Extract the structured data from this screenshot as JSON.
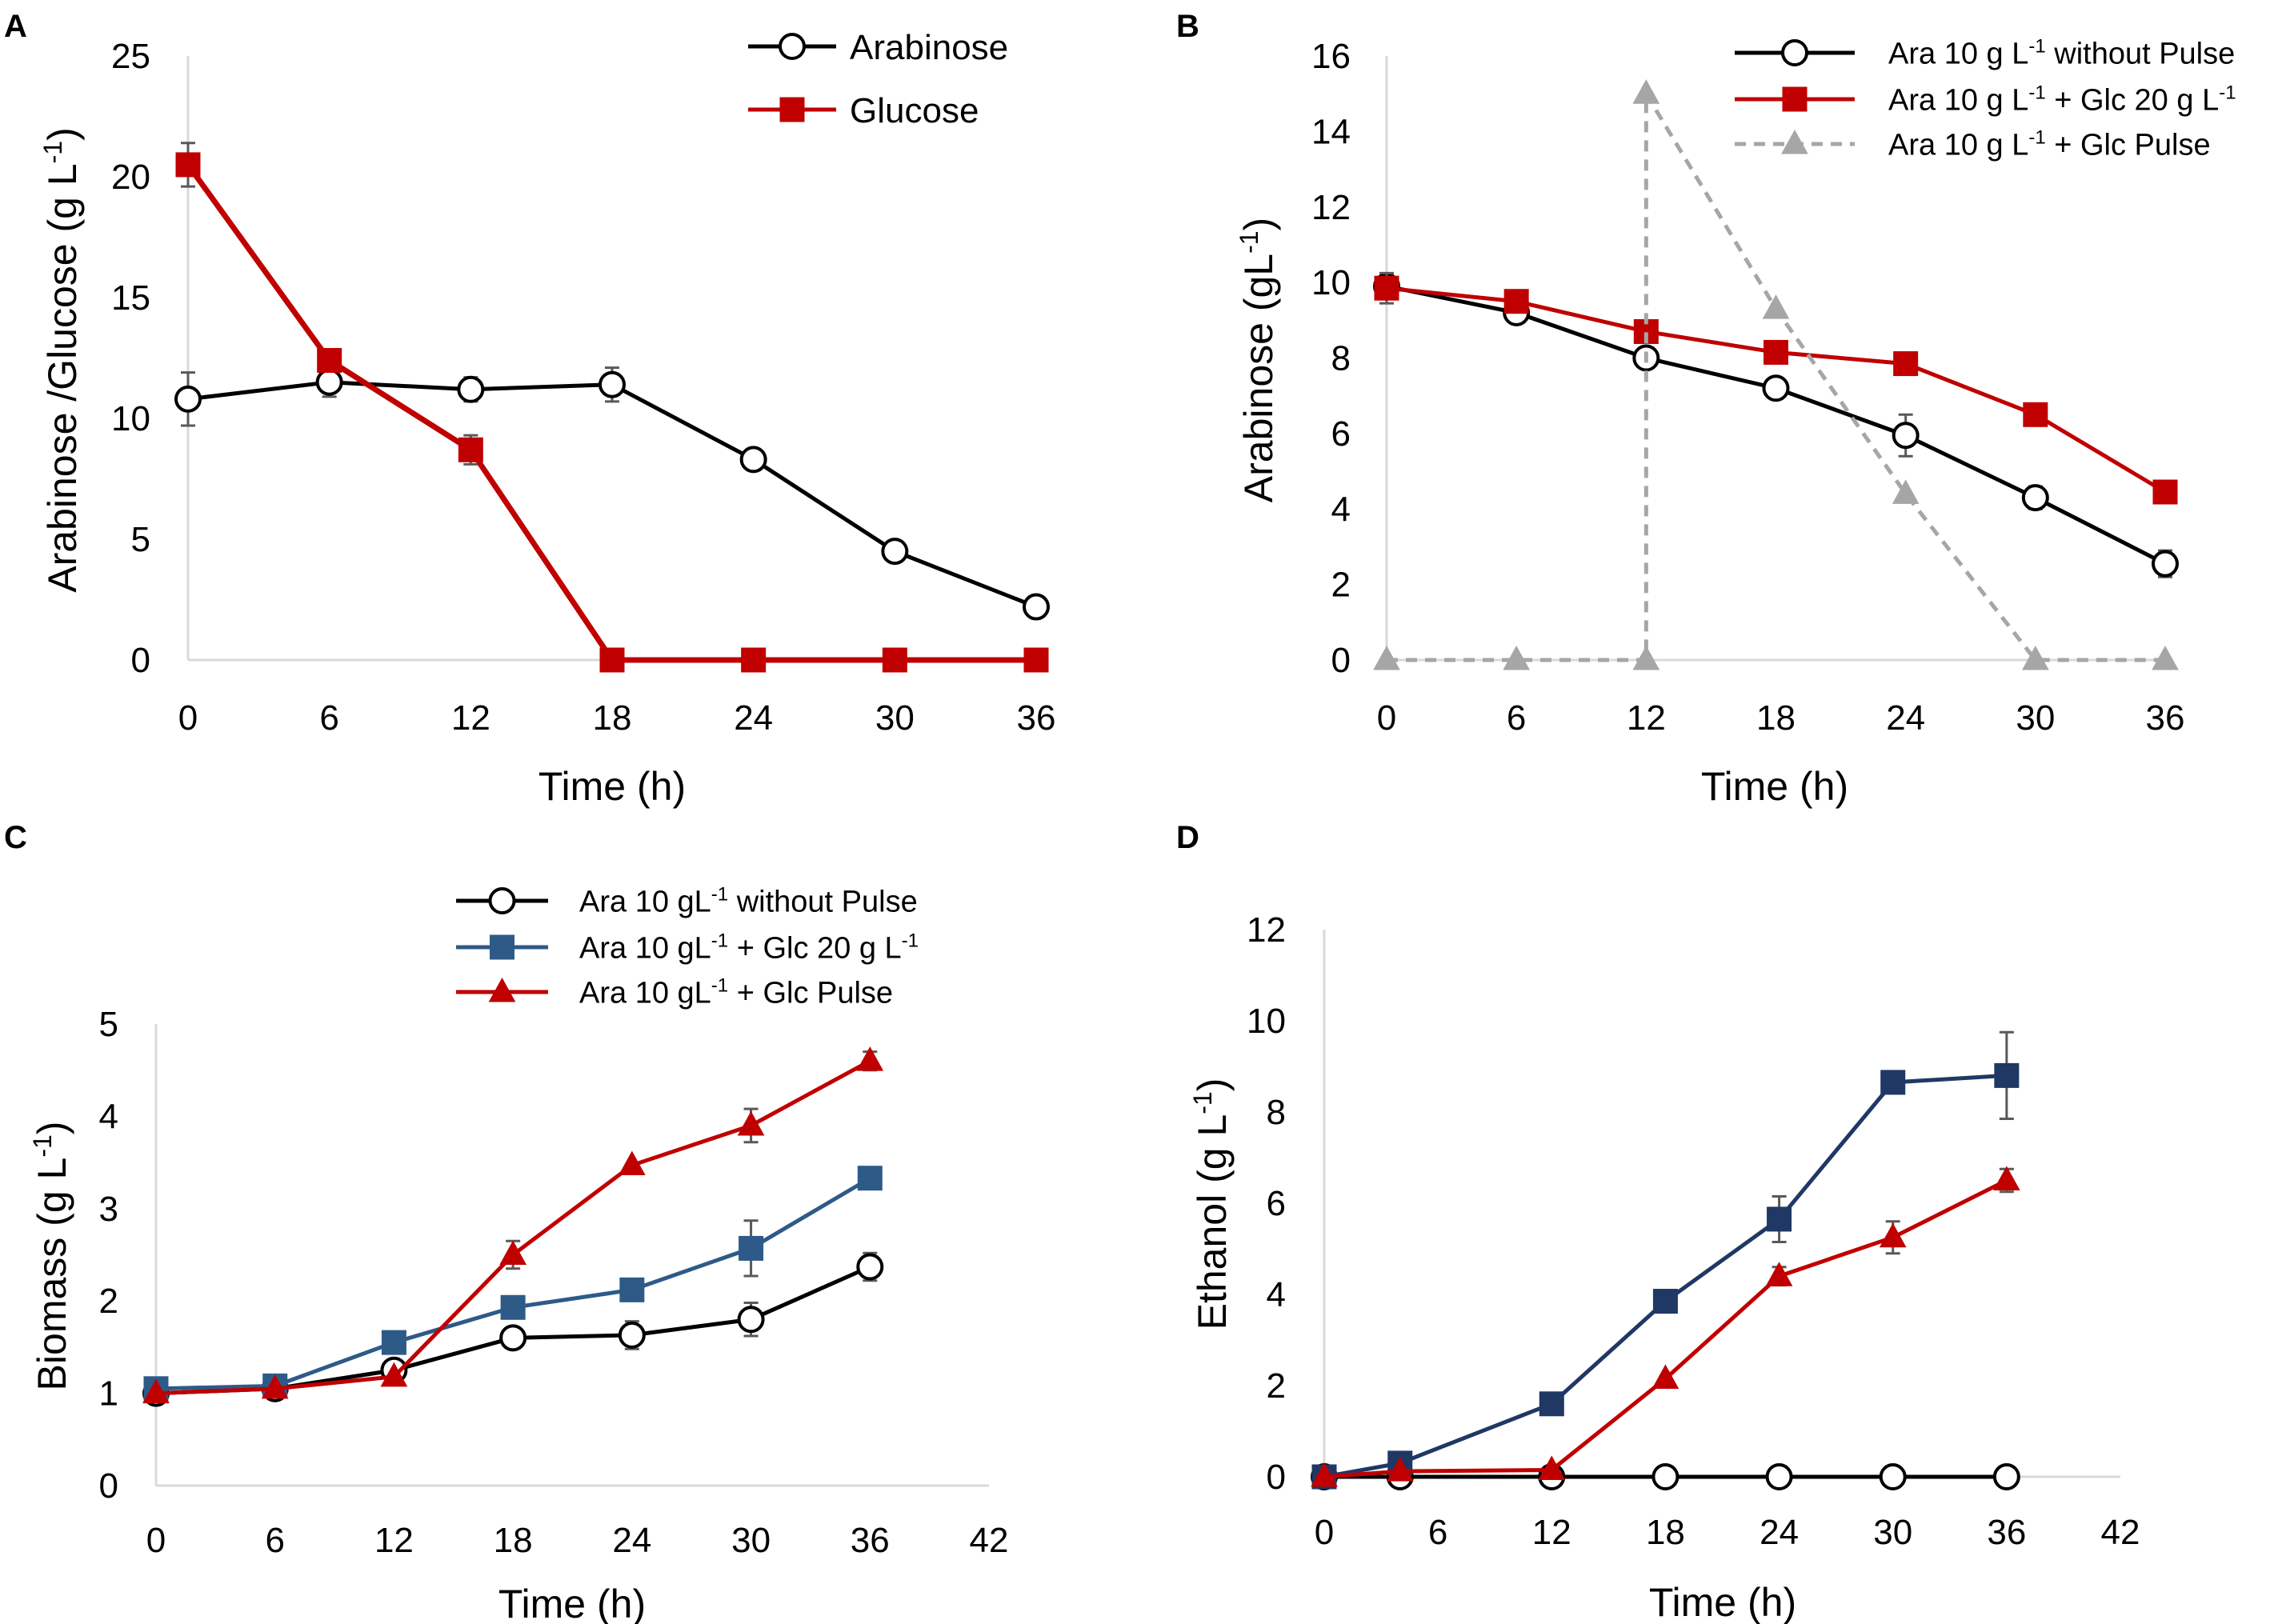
{
  "chart_data": [
    {
      "panel": "A",
      "type": "line",
      "title": "",
      "xlabel": "Time (h)",
      "ylabel": "Arabinose /Glucose  (g L",
      "ylabel_sup": "-1",
      "ylabel_end": ")",
      "xlim": [
        0,
        36
      ],
      "ylim": [
        0,
        25
      ],
      "xticks": [
        0,
        6,
        12,
        18,
        24,
        30,
        36
      ],
      "yticks": [
        0,
        5,
        10,
        15,
        20,
        25
      ],
      "grid": false,
      "legend_position": "top-right",
      "series": [
        {
          "name": "Arabinose",
          "legend_parts": [
            {
              "t": "Arabinose"
            }
          ],
          "color": "#000000",
          "marker": "circle",
          "dashed": false,
          "x": [
            0,
            6,
            12,
            18,
            24,
            30,
            36
          ],
          "y": [
            10.8,
            11.5,
            11.2,
            11.4,
            8.3,
            4.5,
            2.2
          ],
          "err": [
            1.1,
            0.6,
            0.5,
            0.7,
            0,
            0,
            0
          ]
        },
        {
          "name": "Glucose",
          "legend_parts": [
            {
              "t": "Glucose"
            }
          ],
          "color": "#C00000",
          "marker": "square",
          "dashed": false,
          "x": [
            0,
            6,
            12,
            18,
            24,
            30,
            36
          ],
          "y": [
            20.5,
            12.4,
            8.7,
            0,
            0,
            0,
            0
          ],
          "err": [
            0.9,
            0,
            0.6,
            0,
            0,
            0,
            0
          ]
        }
      ]
    },
    {
      "panel": "B",
      "type": "line",
      "title": "",
      "xlabel": "Time (h)",
      "ylabel": "Arabinose (gL",
      "ylabel_sup": "-1",
      "ylabel_end": ")",
      "xlim": [
        0,
        36
      ],
      "ylim": [
        0,
        16
      ],
      "xticks": [
        0,
        6,
        12,
        18,
        24,
        30,
        36
      ],
      "yticks": [
        0,
        2,
        4,
        6,
        8,
        10,
        12,
        14,
        16
      ],
      "grid": false,
      "legend_position": "top-right",
      "series": [
        {
          "name": "Ara 10 g L-1 without Pulse",
          "legend_parts": [
            {
              "t": "Ara 10 g L"
            },
            {
              "t": "-1",
              "sup": true
            },
            {
              "t": " without Pulse"
            }
          ],
          "color": "#000000",
          "marker": "circle",
          "dashed": false,
          "x": [
            0,
            6,
            12,
            18,
            24,
            30,
            36
          ],
          "y": [
            9.9,
            9.2,
            8.0,
            7.2,
            5.95,
            4.3,
            2.55
          ],
          "err": [
            0,
            0,
            0,
            0,
            0.55,
            0.3,
            0.35
          ]
        },
        {
          "name": "Ara 10 g L-1 + Glc 20 g L-1",
          "legend_parts": [
            {
              "t": "Ara 10 g L"
            },
            {
              "t": "-1",
              "sup": true
            },
            {
              "t": "  +  Glc 20 g L"
            },
            {
              "t": "-1",
              "sup": true
            }
          ],
          "color": "#C00000",
          "marker": "square",
          "dashed": false,
          "x": [
            0,
            6,
            12,
            18,
            24,
            30,
            36
          ],
          "y": [
            9.85,
            9.5,
            8.7,
            8.15,
            7.85,
            6.5,
            4.45
          ],
          "err": [
            0.4,
            0,
            0,
            0,
            0,
            0,
            0
          ]
        },
        {
          "name": "Ara 10 g L-1 + Glc Pulse",
          "legend_parts": [
            {
              "t": "Ara 10 g L"
            },
            {
              "t": "-1",
              "sup": true
            },
            {
              "t": "  +  Glc Pulse"
            }
          ],
          "color": "#A6A6A6",
          "marker": "triangle",
          "dashed": true,
          "x": [
            0,
            6,
            12,
            12,
            18,
            24,
            30,
            36
          ],
          "y": [
            0,
            0,
            0,
            15.0,
            9.3,
            4.4,
            0,
            0
          ],
          "err": [
            0,
            0,
            0,
            0,
            0,
            0,
            0,
            0
          ]
        }
      ]
    },
    {
      "panel": "C",
      "type": "line",
      "title": "",
      "xlabel": "Time (h)",
      "ylabel": "Biomass (g L",
      "ylabel_sup": "-1",
      "ylabel_end": ")",
      "xlim": [
        0,
        42
      ],
      "ylim": [
        0,
        5
      ],
      "xticks": [
        0,
        6,
        12,
        18,
        24,
        30,
        36,
        42
      ],
      "yticks": [
        0,
        1,
        2,
        3,
        4,
        5
      ],
      "grid": false,
      "legend_position": "top-center",
      "series": [
        {
          "name": "Ara 10 gL-1 without Pulse",
          "legend_parts": [
            {
              "t": "Ara 10 gL"
            },
            {
              "t": "-1",
              "sup": true
            },
            {
              "t": " without Pulse"
            }
          ],
          "color": "#000000",
          "marker": "circle",
          "dashed": false,
          "x": [
            0,
            6,
            12,
            18,
            24,
            30,
            36
          ],
          "y": [
            1.0,
            1.05,
            1.25,
            1.6,
            1.63,
            1.8,
            2.37
          ],
          "err": [
            0,
            0,
            0,
            0,
            0.15,
            0.18,
            0.15
          ]
        },
        {
          "name": "Ara 10 gL-1 + Glc 20 g L-1",
          "legend_parts": [
            {
              "t": "Ara 10 gL"
            },
            {
              "t": "-1",
              "sup": true
            },
            {
              "t": "  +  Glc 20 g L"
            },
            {
              "t": "-1",
              "sup": true
            }
          ],
          "color": "#2E5A88",
          "marker": "square",
          "dashed": false,
          "x": [
            0,
            6,
            12,
            18,
            24,
            30,
            36
          ],
          "y": [
            1.05,
            1.08,
            1.55,
            1.93,
            2.12,
            2.57,
            3.33
          ],
          "err": [
            0,
            0,
            0,
            0,
            0,
            0.3,
            0
          ]
        },
        {
          "name": "Ara 10 gL-1 + Glc Pulse",
          "legend_parts": [
            {
              "t": "Ara 10 gL"
            },
            {
              "t": "-1",
              "sup": true
            },
            {
              "t": "  +  Glc Pulse"
            }
          ],
          "color": "#C00000",
          "marker": "triangle",
          "dashed": false,
          "x": [
            0,
            6,
            12,
            18,
            24,
            30,
            36
          ],
          "y": [
            1.0,
            1.05,
            1.18,
            2.5,
            3.47,
            3.9,
            4.6
          ],
          "err": [
            0,
            0,
            0,
            0.15,
            0,
            0.18,
            0.1
          ]
        }
      ]
    },
    {
      "panel": "D",
      "type": "line",
      "title": "",
      "xlabel": "Time (h)",
      "ylabel": "Ethanol (g L",
      "ylabel_sup": "-1",
      "ylabel_end": ")",
      "xlim": [
        0,
        42
      ],
      "ylim": [
        0,
        12
      ],
      "xticks": [
        0,
        6,
        12,
        18,
        24,
        30,
        36,
        42
      ],
      "yticks": [
        0,
        2,
        4,
        6,
        8,
        10,
        12
      ],
      "grid": false,
      "legend_position": "none",
      "series": [
        {
          "name": "Ara 10 gL-1 without Pulse",
          "color": "#000000",
          "marker": "circle",
          "dashed": false,
          "x": [
            0,
            4,
            12,
            18,
            24,
            30,
            36
          ],
          "y": [
            0,
            0,
            0,
            0,
            0,
            0,
            0
          ],
          "err": [
            0,
            0,
            0,
            0,
            0,
            0,
            0
          ]
        },
        {
          "name": "Ara 10 gL-1 + Glc 20 g L-1",
          "color": "#1F3864",
          "marker": "square",
          "dashed": false,
          "x": [
            0,
            4,
            12,
            18,
            24,
            30,
            36
          ],
          "y": [
            0,
            0.3,
            1.6,
            3.85,
            5.65,
            8.65,
            8.8
          ],
          "err": [
            0,
            0,
            0,
            0,
            0.5,
            0,
            0.95
          ]
        },
        {
          "name": "Ara 10 gL-1 + Glc Pulse",
          "color": "#C00000",
          "marker": "triangle",
          "dashed": false,
          "x": [
            0,
            4,
            12,
            18,
            24,
            30,
            36
          ],
          "y": [
            0,
            0.12,
            0.15,
            2.15,
            4.4,
            5.25,
            6.5
          ],
          "err": [
            0,
            0,
            0,
            0,
            0.2,
            0.35,
            0.25
          ]
        }
      ]
    }
  ]
}
